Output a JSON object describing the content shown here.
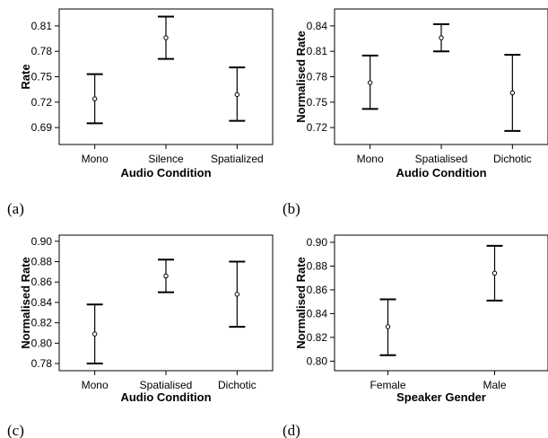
{
  "chart_data": [
    {
      "type": "errorbar",
      "panel_label": "(a)",
      "xlabel": "Audio Condition",
      "ylabel": "Rate",
      "ylim": [
        0.67,
        0.83
      ],
      "yticks": [
        0.69,
        0.72,
        0.75,
        0.78,
        0.81
      ],
      "ytick_labels": [
        "0.69",
        "0.72",
        "0.75",
        "0.78",
        "0.81"
      ],
      "categories": [
        "Mono",
        "Silence",
        "Spatialized"
      ],
      "means": [
        0.724,
        0.796,
        0.729
      ],
      "lower": [
        0.695,
        0.771,
        0.698
      ],
      "upper": [
        0.753,
        0.821,
        0.761
      ]
    },
    {
      "type": "errorbar",
      "panel_label": "(b)",
      "xlabel": "Audio Condition",
      "ylabel": "Normalised Rate",
      "ylim": [
        0.7,
        0.86
      ],
      "yticks": [
        0.72,
        0.75,
        0.78,
        0.81,
        0.84
      ],
      "ytick_labels": [
        "0.72",
        "0.75",
        "0.78",
        "0.81",
        "0.84"
      ],
      "categories": [
        "Mono",
        "Spatialised",
        "Dichotic"
      ],
      "means": [
        0.773,
        0.826,
        0.761
      ],
      "lower": [
        0.742,
        0.81,
        0.716
      ],
      "upper": [
        0.805,
        0.842,
        0.806
      ]
    },
    {
      "type": "errorbar",
      "panel_label": "(c)",
      "xlabel": "Audio Condition",
      "ylabel": "Normalised Rate",
      "ylim": [
        0.773,
        0.906
      ],
      "yticks": [
        0.78,
        0.8,
        0.82,
        0.84,
        0.86,
        0.88,
        0.9
      ],
      "ytick_labels": [
        "0.78",
        "0.80",
        "0.82",
        "0.84",
        "0.86",
        "0.88",
        "0.90"
      ],
      "categories": [
        "Mono",
        "Spatialised",
        "Dichotic"
      ],
      "means": [
        0.809,
        0.866,
        0.848
      ],
      "lower": [
        0.78,
        0.85,
        0.816
      ],
      "upper": [
        0.838,
        0.882,
        0.88
      ]
    },
    {
      "type": "errorbar",
      "panel_label": "(d)",
      "xlabel": "Speaker Gender",
      "ylabel": "Normalised Rate",
      "ylim": [
        0.792,
        0.906
      ],
      "yticks": [
        0.8,
        0.82,
        0.84,
        0.86,
        0.88,
        0.9
      ],
      "ytick_labels": [
        "0.80",
        "0.82",
        "0.84",
        "0.86",
        "0.88",
        "0.90"
      ],
      "categories": [
        "Female",
        "Male"
      ],
      "means": [
        0.829,
        0.874
      ],
      "lower": [
        0.805,
        0.851
      ],
      "upper": [
        0.852,
        0.897
      ]
    }
  ]
}
